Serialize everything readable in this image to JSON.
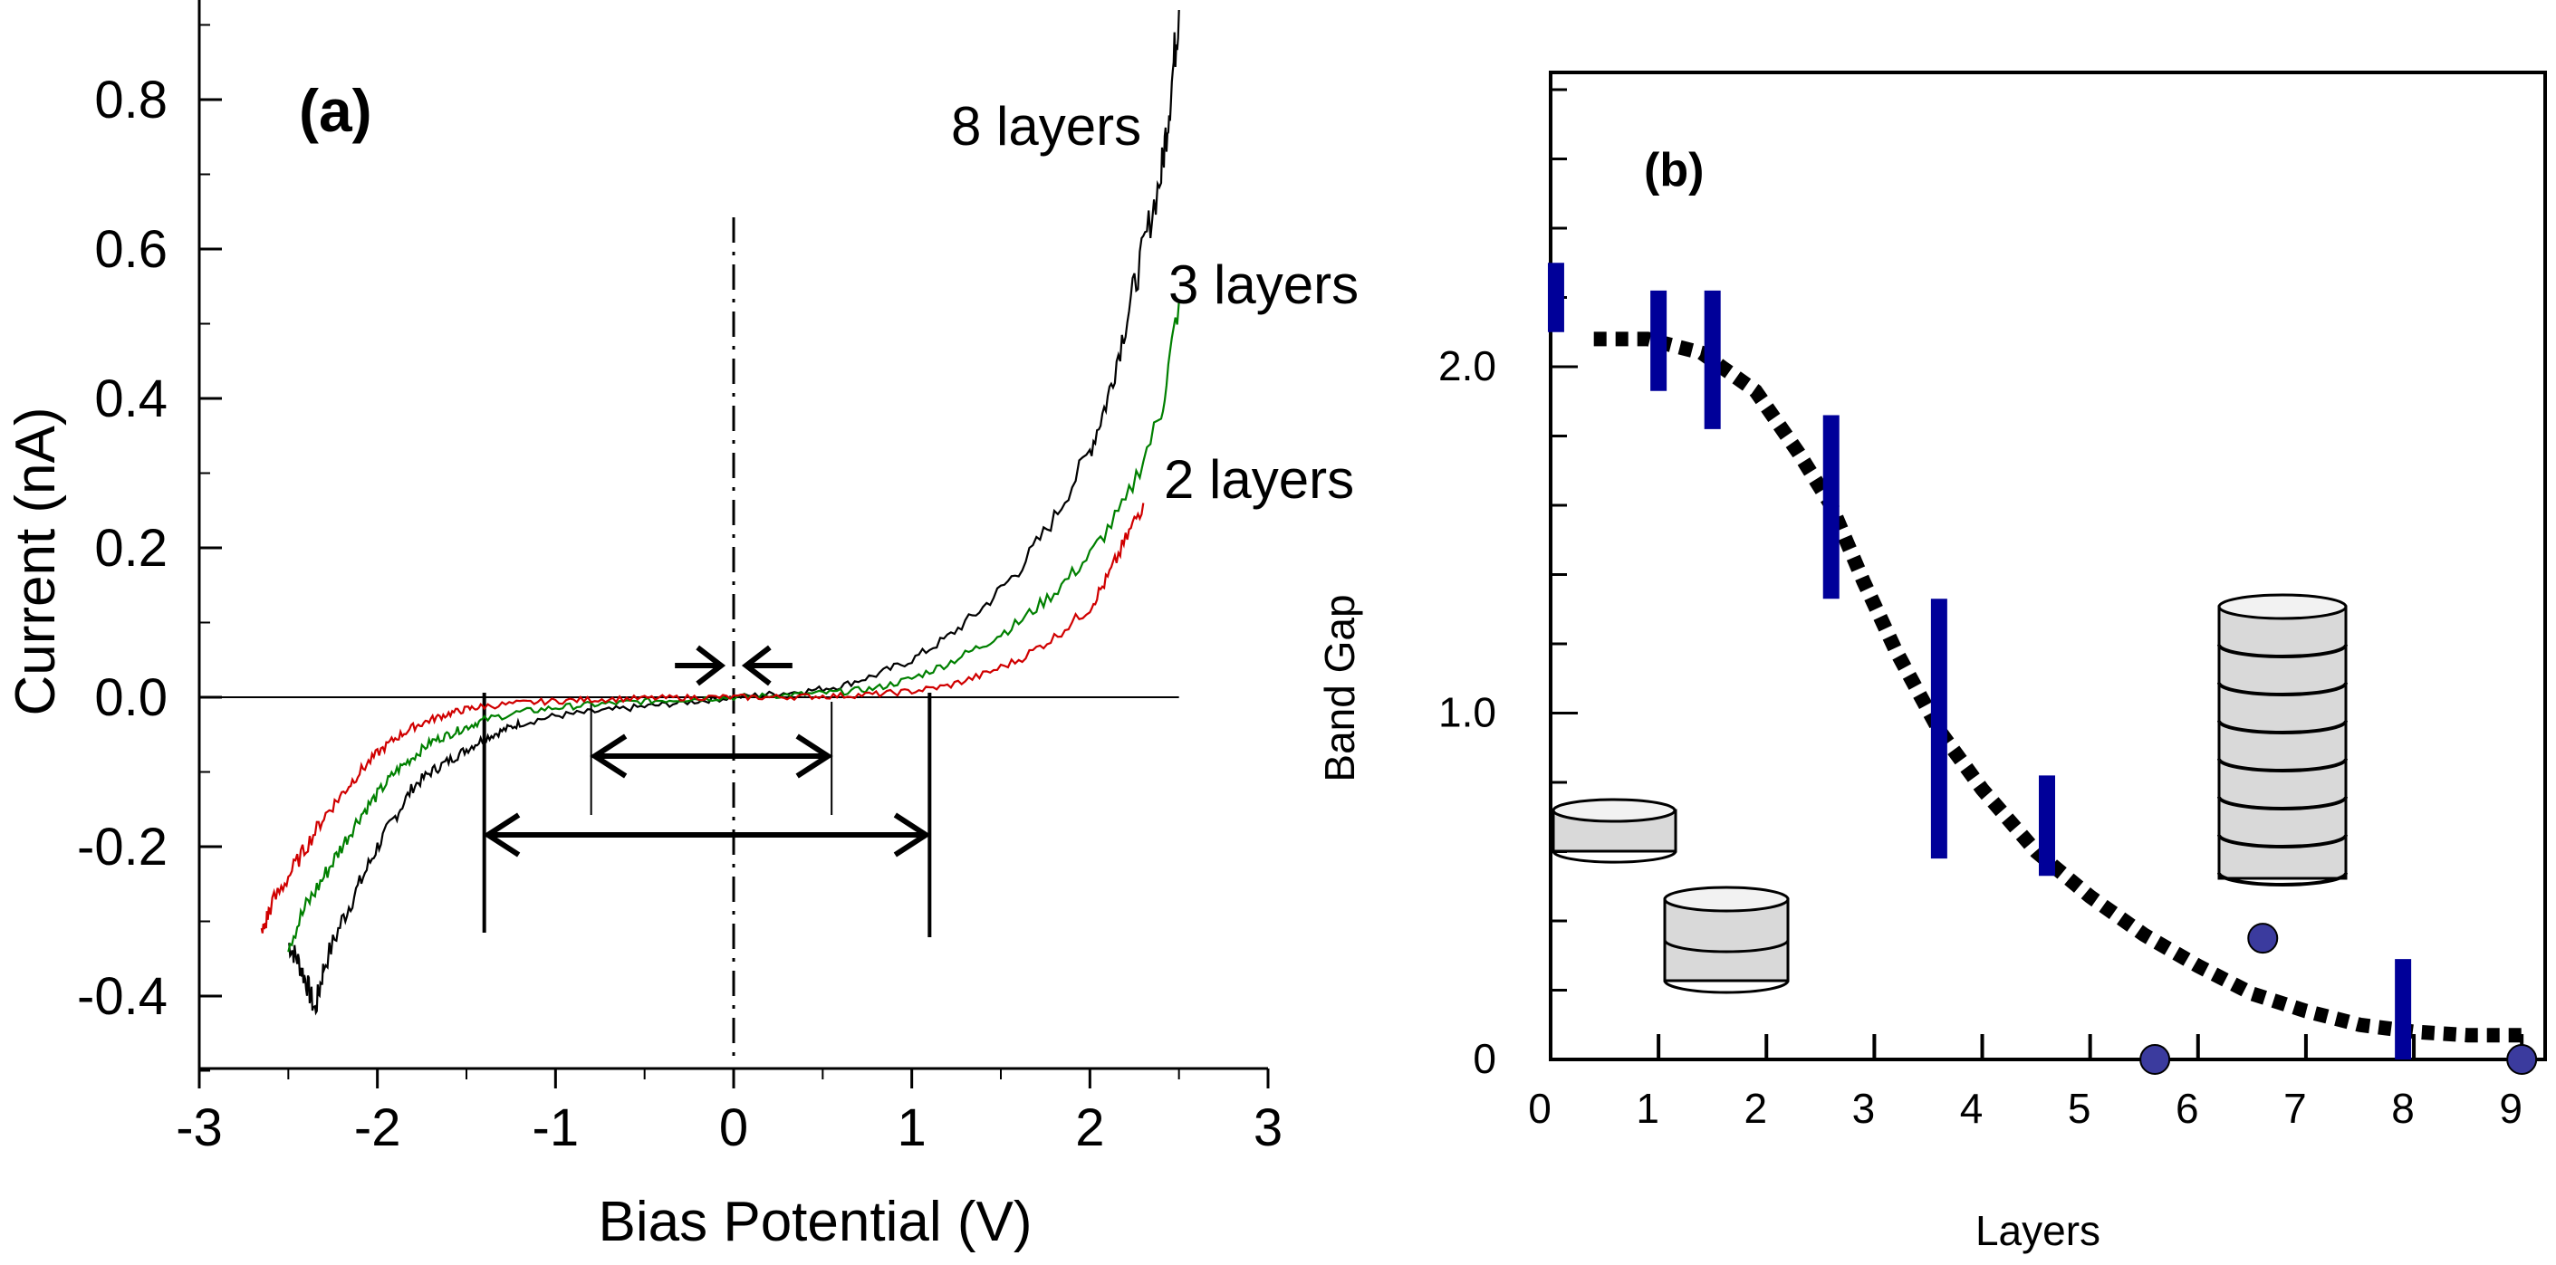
{
  "chart_data": [
    {
      "type": "line",
      "panel_label": "(a)",
      "xlabel": "Bias Potential (V)",
      "ylabel": "Current (nA)",
      "xlim": [
        -3,
        3
      ],
      "ylim": [
        -0.5,
        0.92
      ],
      "xticks": [
        "-3",
        "-2",
        "-1",
        "0",
        "1",
        "2",
        "3"
      ],
      "yticks": [
        "0.8",
        "0.6",
        "0.4",
        "0.2",
        "0.0",
        "-0.2",
        "-0.4"
      ],
      "series": [
        {
          "name": "8 layers",
          "color": "#000000",
          "x": [
            -2.5,
            -2.45,
            -2.4,
            -2.35,
            -2.3,
            -2.2,
            -2.1,
            -2.0,
            -1.9,
            -1.8,
            -1.7,
            -1.6,
            -1.5,
            -1.4,
            -1.3,
            -1.2,
            -1.0,
            -0.8,
            -0.6,
            -0.4,
            -0.2,
            0.0,
            0.2,
            0.4,
            0.6,
            0.8,
            1.0,
            1.2,
            1.4,
            1.6,
            1.8,
            2.0,
            2.1,
            2.2,
            2.3,
            2.4,
            2.45,
            2.5
          ],
          "y": [
            -0.33,
            -0.35,
            -0.38,
            -0.42,
            -0.36,
            -0.3,
            -0.25,
            -0.2,
            -0.16,
            -0.12,
            -0.1,
            -0.085,
            -0.07,
            -0.055,
            -0.045,
            -0.035,
            -0.025,
            -0.02,
            -0.015,
            -0.01,
            -0.005,
            0.0,
            0.004,
            0.008,
            0.015,
            0.03,
            0.05,
            0.08,
            0.12,
            0.17,
            0.24,
            0.33,
            0.4,
            0.5,
            0.6,
            0.7,
            0.8,
            0.92
          ]
        },
        {
          "name": "3 layers",
          "color": "#008000",
          "x": [
            -2.5,
            -2.4,
            -2.3,
            -2.2,
            -2.1,
            -2.0,
            -1.9,
            -1.8,
            -1.7,
            -1.6,
            -1.5,
            -1.4,
            -1.2,
            -1.0,
            -0.8,
            -0.6,
            -0.4,
            -0.2,
            0.0,
            0.2,
            0.4,
            0.6,
            0.8,
            1.0,
            1.2,
            1.4,
            1.6,
            1.8,
            2.0,
            2.2,
            2.4,
            2.5
          ],
          "y": [
            -0.33,
            -0.28,
            -0.24,
            -0.2,
            -0.16,
            -0.13,
            -0.1,
            -0.08,
            -0.06,
            -0.05,
            -0.04,
            -0.03,
            -0.02,
            -0.014,
            -0.01,
            -0.007,
            -0.004,
            -0.002,
            0.0,
            0.002,
            0.004,
            0.007,
            0.012,
            0.025,
            0.045,
            0.07,
            0.1,
            0.14,
            0.19,
            0.26,
            0.38,
            0.53
          ]
        },
        {
          "name": "2 layers",
          "color": "#d00000",
          "x": [
            -2.65,
            -2.6,
            -2.5,
            -2.4,
            -2.3,
            -2.2,
            -2.1,
            -2.0,
            -1.9,
            -1.8,
            -1.7,
            -1.6,
            -1.5,
            -1.4,
            -1.2,
            -1.0,
            -0.8,
            -0.6,
            -0.4,
            -0.2,
            0.0,
            0.2,
            0.4,
            0.6,
            0.8,
            1.0,
            1.2,
            1.4,
            1.6,
            1.8,
            2.0,
            2.1,
            2.2,
            2.3
          ],
          "y": [
            -0.32,
            -0.28,
            -0.24,
            -0.2,
            -0.16,
            -0.13,
            -0.1,
            -0.075,
            -0.055,
            -0.04,
            -0.03,
            -0.022,
            -0.016,
            -0.012,
            -0.008,
            -0.005,
            -0.003,
            -0.002,
            -0.001,
            0.0,
            0.0,
            0.0,
            0.001,
            0.002,
            0.004,
            0.008,
            0.015,
            0.03,
            0.05,
            0.08,
            0.12,
            0.16,
            0.21,
            0.26
          ]
        }
      ],
      "annotations": {
        "center_line_x": 0.0,
        "gap_markers": [
          {
            "left": -1.4,
            "right": 1.1
          },
          {
            "left": -0.8,
            "right": 0.55
          },
          {
            "left": -0.05,
            "right": 0.05
          }
        ]
      }
    },
    {
      "type": "scatter",
      "panel_label": "(b)",
      "xlabel": "Layers",
      "ylabel": "Band Gap",
      "xlim": [
        0,
        9.2
      ],
      "ylim": [
        0,
        2.85
      ],
      "xticks": [
        "0",
        "1",
        "2",
        "3",
        "4",
        "5",
        "6",
        "7",
        "8",
        "9"
      ],
      "yticks": [
        "2.0",
        "1.0",
        "0"
      ],
      "bars_color": "#000099",
      "bars": [
        {
          "x": 0.05,
          "low": 2.1,
          "high": 2.3
        },
        {
          "x": 1.0,
          "low": 1.93,
          "high": 2.22
        },
        {
          "x": 1.5,
          "low": 1.82,
          "high": 2.22
        },
        {
          "x": 2.6,
          "low": 1.33,
          "high": 1.86
        },
        {
          "x": 3.6,
          "low": 0.58,
          "high": 1.33
        },
        {
          "x": 4.6,
          "low": 0.53,
          "high": 0.82
        },
        {
          "x": 7.9,
          "low": 0.0,
          "high": 0.29
        }
      ],
      "points_color": "#3b3b9e",
      "points": [
        {
          "x": 5.6,
          "y": 0.0
        },
        {
          "x": 6.6,
          "y": 0.35
        },
        {
          "x": 9.0,
          "y": 0.0
        }
      ],
      "fit_curve": {
        "style": "dotted",
        "x": [
          0.4,
          0.9,
          1.4,
          1.9,
          2.3,
          2.6,
          2.9,
          3.2,
          3.6,
          4.0,
          4.5,
          5.0,
          5.5,
          6.0,
          6.5,
          7.0,
          7.5,
          8.0,
          8.5,
          9.0
        ],
        "y": [
          2.08,
          2.08,
          2.04,
          1.93,
          1.75,
          1.6,
          1.38,
          1.18,
          0.95,
          0.78,
          0.6,
          0.47,
          0.36,
          0.27,
          0.19,
          0.14,
          0.1,
          0.08,
          0.07,
          0.07
        ]
      }
    }
  ]
}
